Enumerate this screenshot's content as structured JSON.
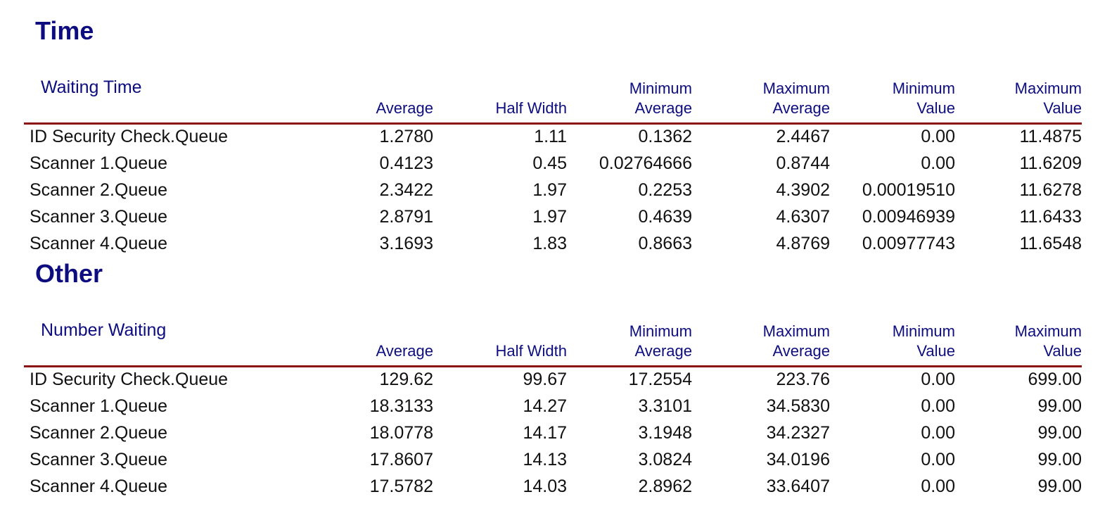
{
  "sections": [
    {
      "title": "Time",
      "table": {
        "label": "Waiting Time",
        "columns": [
          {
            "line1": "",
            "line2": "Average"
          },
          {
            "line1": "",
            "line2": "Half Width"
          },
          {
            "line1": "Minimum",
            "line2": "Average"
          },
          {
            "line1": "Maximum",
            "line2": "Average"
          },
          {
            "line1": "Minimum",
            "line2": "Value"
          },
          {
            "line1": "Maximum",
            "line2": "Value"
          }
        ],
        "rows": [
          {
            "name": "ID Security Check.Queue",
            "values": [
              "1.2780",
              "1.11",
              "0.1362",
              "2.4467",
              "0.00",
              "11.4875"
            ]
          },
          {
            "name": "Scanner 1.Queue",
            "values": [
              "0.4123",
              "0.45",
              "0.02764666",
              "0.8744",
              "0.00",
              "11.6209"
            ]
          },
          {
            "name": "Scanner 2.Queue",
            "values": [
              "2.3422",
              "1.97",
              "0.2253",
              "4.3902",
              "0.00019510",
              "11.6278"
            ]
          },
          {
            "name": "Scanner 3.Queue",
            "values": [
              "2.8791",
              "1.97",
              "0.4639",
              "4.6307",
              "0.00946939",
              "11.6433"
            ]
          },
          {
            "name": "Scanner 4.Queue",
            "values": [
              "3.1693",
              "1.83",
              "0.8663",
              "4.8769",
              "0.00977743",
              "11.6548"
            ]
          }
        ]
      }
    },
    {
      "title": "Other",
      "table": {
        "label": "Number Waiting",
        "columns": [
          {
            "line1": "",
            "line2": "Average"
          },
          {
            "line1": "",
            "line2": "Half Width"
          },
          {
            "line1": "Minimum",
            "line2": "Average"
          },
          {
            "line1": "Maximum",
            "line2": "Average"
          },
          {
            "line1": "Minimum",
            "line2": "Value"
          },
          {
            "line1": "Maximum",
            "line2": "Value"
          }
        ],
        "rows": [
          {
            "name": "ID Security Check.Queue",
            "values": [
              "129.62",
              "99.67",
              "17.2554",
              "223.76",
              "0.00",
              "699.00"
            ]
          },
          {
            "name": "Scanner 1.Queue",
            "values": [
              "18.3133",
              "14.27",
              "3.3101",
              "34.5830",
              "0.00",
              "99.00"
            ]
          },
          {
            "name": "Scanner 2.Queue",
            "values": [
              "18.0778",
              "14.17",
              "3.1948",
              "34.2327",
              "0.00",
              "99.00"
            ]
          },
          {
            "name": "Scanner 3.Queue",
            "values": [
              "17.8607",
              "14.13",
              "3.0824",
              "34.0196",
              "0.00",
              "99.00"
            ]
          },
          {
            "name": "Scanner 4.Queue",
            "values": [
              "17.5782",
              "14.03",
              "2.8962",
              "33.6407",
              "0.00",
              "99.00"
            ]
          }
        ]
      }
    }
  ]
}
